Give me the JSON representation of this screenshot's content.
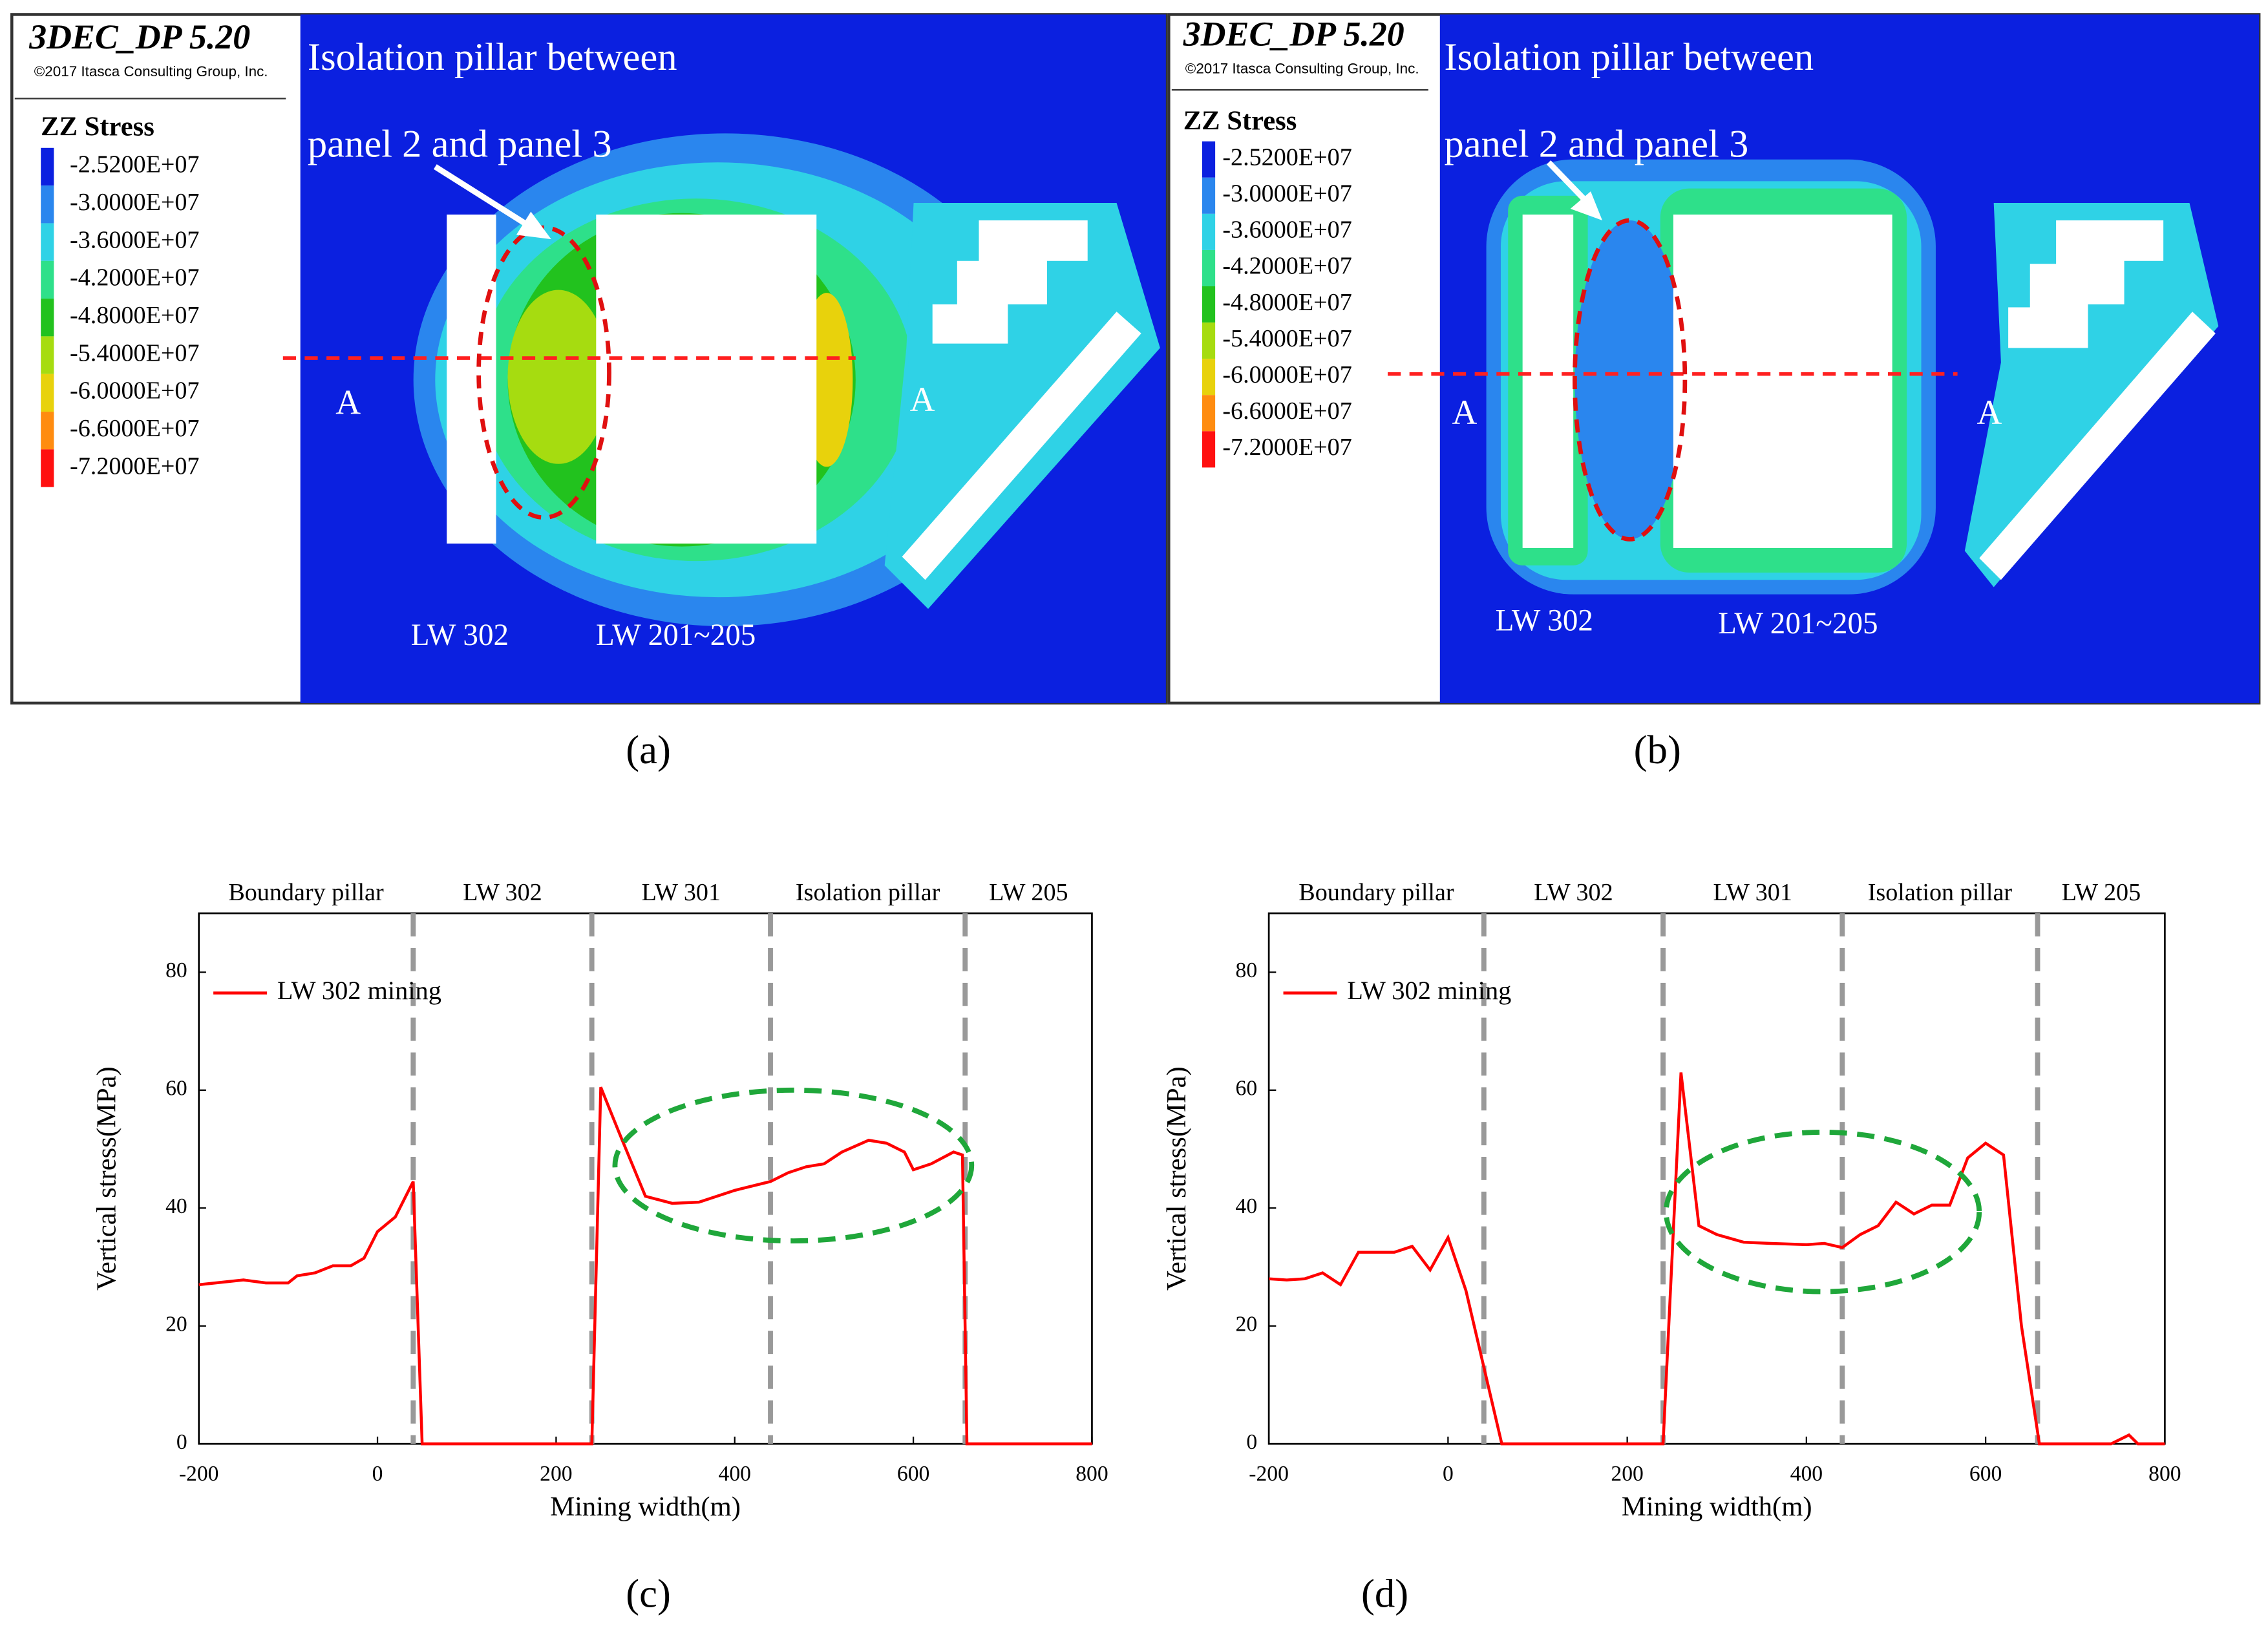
{
  "panels": [
    {
      "software": "3DEC_DP 5.20",
      "copyright": "©2017 Itasca Consulting Group, Inc.",
      "legend_title": "ZZ Stress",
      "levels": [
        {
          "label": "-2.5200E+07",
          "color": "#0b20e0"
        },
        {
          "label": "-3.0000E+07",
          "color": "#2a86ee"
        },
        {
          "label": "-3.6000E+07",
          "color": "#2fd2e6"
        },
        {
          "label": "-4.2000E+07",
          "color": "#2ee08a"
        },
        {
          "label": "-4.8000E+07",
          "color": "#22c21e"
        },
        {
          "label": "-5.4000E+07",
          "color": "#a6dc10"
        },
        {
          "label": "-6.0000E+07",
          "color": "#e8d20c"
        },
        {
          "label": "-6.6000E+07",
          "color": "#ff8c10"
        },
        {
          "label": "-7.2000E+07",
          "color": "#ff1010"
        }
      ],
      "annotation": [
        "Isolation pillar between",
        "panel 2 and panel 3"
      ],
      "section_labels": [
        "A",
        "A"
      ],
      "panel_labels": [
        "LW 302",
        "LW 201~205"
      ],
      "caption": "(a)"
    },
    {
      "software": "3DEC_DP 5.20",
      "copyright": "©2017 Itasca Consulting Group, Inc.",
      "legend_title": "ZZ Stress",
      "levels": [
        {
          "label": "-2.5200E+07",
          "color": "#0b20e0"
        },
        {
          "label": "-3.0000E+07",
          "color": "#2a86ee"
        },
        {
          "label": "-3.6000E+07",
          "color": "#2fd2e6"
        },
        {
          "label": "-4.2000E+07",
          "color": "#2ee08a"
        },
        {
          "label": "-4.8000E+07",
          "color": "#22c21e"
        },
        {
          "label": "-5.4000E+07",
          "color": "#a6dc10"
        },
        {
          "label": "-6.0000E+07",
          "color": "#e8d20c"
        },
        {
          "label": "-6.6000E+07",
          "color": "#ff8c10"
        },
        {
          "label": "-7.2000E+07",
          "color": "#ff1010"
        }
      ],
      "annotation": [
        "Isolation pillar between",
        "panel 2 and panel 3"
      ],
      "section_labels": [
        "A",
        "A"
      ],
      "panel_labels": [
        "LW 302",
        "LW 201~205"
      ],
      "caption": "(b)"
    }
  ],
  "chart_data": [
    {
      "type": "line",
      "caption": "(c)",
      "xlabel": "Mining width(m)",
      "ylabel": "Vertical stress(MPa)",
      "regions": [
        "Boundary pillar",
        "LW 302",
        "LW 301",
        "Isolation pillar",
        "LW 205"
      ],
      "dividers": [
        40,
        240,
        440,
        658
      ],
      "xlim": [
        -200,
        800
      ],
      "ylim": [
        0,
        90
      ],
      "xticks": [
        -200,
        0,
        200,
        400,
        600,
        800
      ],
      "yticks": [
        0,
        20,
        40,
        60,
        80
      ],
      "legend": "upper left",
      "x": [
        -200,
        -150,
        -125,
        -100,
        -90,
        -70,
        -50,
        -30,
        -15,
        0,
        20,
        40,
        50,
        100,
        200,
        240,
        250,
        270,
        300,
        330,
        360,
        400,
        440,
        460,
        480,
        500,
        520,
        550,
        570,
        590,
        600,
        620,
        645,
        655,
        660,
        700,
        800
      ],
      "series": [
        {
          "name": "LW 302 mining",
          "color": "#ff0000",
          "values": [
            27,
            27.8,
            27.3,
            27.3,
            28.5,
            29,
            30.2,
            30.2,
            31.5,
            36,
            38.5,
            44.5,
            0,
            0,
            0,
            0,
            60.5,
            53,
            42,
            40.8,
            41,
            43,
            44.5,
            46,
            47,
            47.5,
            49.5,
            51.5,
            51,
            49.5,
            46.5,
            47.5,
            49.5,
            49,
            0,
            0,
            0
          ]
        }
      ]
    },
    {
      "type": "line",
      "caption": "(d)",
      "xlabel": "Mining width(m)",
      "ylabel": "Vertical stress(MPa)",
      "regions": [
        "Boundary pillar",
        "LW 302",
        "LW 301",
        "Isolation pillar",
        "LW 205"
      ],
      "dividers": [
        40,
        240,
        440,
        658
      ],
      "xlim": [
        -200,
        800
      ],
      "ylim": [
        0,
        90
      ],
      "xticks": [
        -200,
        0,
        200,
        400,
        600,
        800
      ],
      "yticks": [
        0,
        20,
        40,
        60,
        80
      ],
      "legend": "upper left",
      "x": [
        -200,
        -180,
        -160,
        -140,
        -120,
        -100,
        -60,
        -40,
        -20,
        0,
        20,
        60,
        100,
        200,
        240,
        260,
        280,
        300,
        330,
        360,
        400,
        420,
        440,
        460,
        480,
        500,
        520,
        540,
        560,
        580,
        600,
        620,
        640,
        660,
        700,
        740,
        760,
        770,
        800
      ],
      "series": [
        {
          "name": "LW 302 mining",
          "color": "#ff0000",
          "values": [
            28,
            27.8,
            28,
            29,
            27,
            32.5,
            32.5,
            33.5,
            29.5,
            35,
            26,
            0,
            0,
            0,
            0,
            63,
            37,
            35.5,
            34.2,
            34,
            33.8,
            34,
            33.3,
            35.5,
            37,
            41,
            39,
            40.5,
            40.5,
            48.5,
            51,
            49,
            20,
            0,
            0,
            0,
            1.5,
            0,
            0
          ]
        }
      ]
    }
  ]
}
